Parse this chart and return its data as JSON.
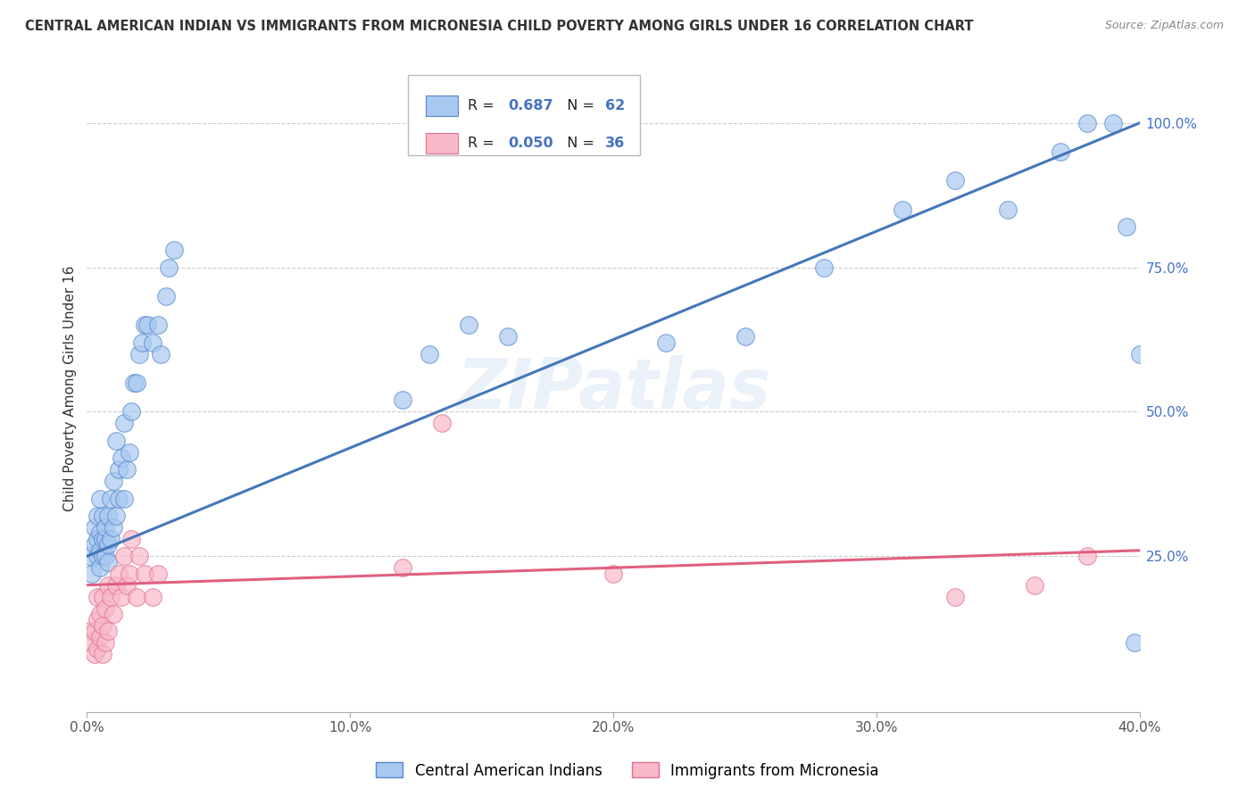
{
  "title": "CENTRAL AMERICAN INDIAN VS IMMIGRANTS FROM MICRONESIA CHILD POVERTY AMONG GIRLS UNDER 16 CORRELATION CHART",
  "source": "Source: ZipAtlas.com",
  "ylabel": "Child Poverty Among Girls Under 16",
  "xlim": [
    0.0,
    0.4
  ],
  "ylim": [
    -0.02,
    1.1
  ],
  "xticks": [
    0.0,
    0.1,
    0.2,
    0.3,
    0.4
  ],
  "xtick_labels": [
    "0.0%",
    "10.0%",
    "20.0%",
    "30.0%",
    "40.0%"
  ],
  "yticks": [
    0.25,
    0.5,
    0.75,
    1.0
  ],
  "ytick_labels": [
    "25.0%",
    "50.0%",
    "75.0%",
    "100.0%"
  ],
  "blue_R": 0.687,
  "blue_N": 62,
  "pink_R": 0.05,
  "pink_N": 36,
  "blue_color": "#a8c8f0",
  "blue_edge_color": "#5588cc",
  "blue_line_color": "#4477bb",
  "pink_color": "#f8b8c8",
  "pink_edge_color": "#e07090",
  "pink_line_color": "#e06080",
  "watermark": "ZIPatlas",
  "legend_label_blue": "Central American Indians",
  "legend_label_pink": "Immigrants from Micronesia",
  "blue_x": [
    0.001,
    0.002,
    0.003,
    0.003,
    0.004,
    0.004,
    0.004,
    0.005,
    0.005,
    0.005,
    0.005,
    0.006,
    0.006,
    0.006,
    0.007,
    0.007,
    0.007,
    0.008,
    0.008,
    0.008,
    0.009,
    0.009,
    0.01,
    0.01,
    0.011,
    0.011,
    0.012,
    0.012,
    0.013,
    0.014,
    0.014,
    0.015,
    0.016,
    0.017,
    0.018,
    0.019,
    0.02,
    0.021,
    0.022,
    0.023,
    0.025,
    0.027,
    0.028,
    0.03,
    0.031,
    0.033,
    0.12,
    0.13,
    0.145,
    0.16,
    0.22,
    0.25,
    0.28,
    0.31,
    0.33,
    0.35,
    0.37,
    0.38,
    0.39,
    0.395,
    0.398,
    0.4
  ],
  "blue_y": [
    0.25,
    0.22,
    0.27,
    0.3,
    0.25,
    0.28,
    0.32,
    0.23,
    0.26,
    0.29,
    0.35,
    0.25,
    0.28,
    0.32,
    0.25,
    0.28,
    0.3,
    0.24,
    0.27,
    0.32,
    0.28,
    0.35,
    0.3,
    0.38,
    0.32,
    0.45,
    0.35,
    0.4,
    0.42,
    0.35,
    0.48,
    0.4,
    0.43,
    0.5,
    0.55,
    0.55,
    0.6,
    0.62,
    0.65,
    0.65,
    0.62,
    0.65,
    0.6,
    0.7,
    0.75,
    0.78,
    0.52,
    0.6,
    0.65,
    0.63,
    0.62,
    0.63,
    0.75,
    0.85,
    0.9,
    0.85,
    0.95,
    1.0,
    1.0,
    0.82,
    0.1,
    0.6
  ],
  "pink_x": [
    0.001,
    0.002,
    0.003,
    0.003,
    0.004,
    0.004,
    0.004,
    0.005,
    0.005,
    0.006,
    0.006,
    0.006,
    0.007,
    0.007,
    0.008,
    0.008,
    0.009,
    0.01,
    0.011,
    0.012,
    0.013,
    0.014,
    0.015,
    0.016,
    0.017,
    0.019,
    0.02,
    0.022,
    0.025,
    0.027,
    0.12,
    0.135,
    0.2,
    0.33,
    0.36,
    0.38
  ],
  "pink_y": [
    0.12,
    0.1,
    0.08,
    0.12,
    0.09,
    0.14,
    0.18,
    0.11,
    0.15,
    0.08,
    0.13,
    0.18,
    0.1,
    0.16,
    0.12,
    0.2,
    0.18,
    0.15,
    0.2,
    0.22,
    0.18,
    0.25,
    0.2,
    0.22,
    0.28,
    0.18,
    0.25,
    0.22,
    0.18,
    0.22,
    0.23,
    0.48,
    0.22,
    0.18,
    0.2,
    0.25
  ],
  "blue_trendline_x": [
    0.0,
    0.4
  ],
  "blue_trendline_y": [
    0.25,
    1.0
  ],
  "pink_trendline_x": [
    0.0,
    0.4
  ],
  "pink_trendline_y": [
    0.2,
    0.26
  ]
}
